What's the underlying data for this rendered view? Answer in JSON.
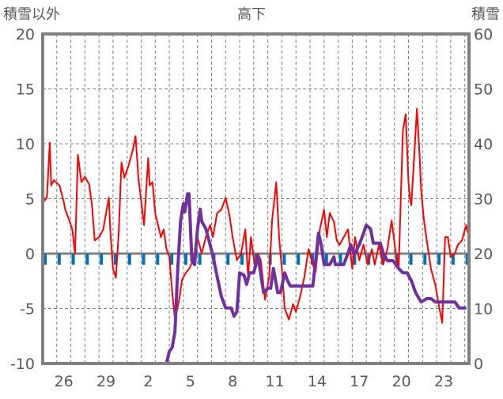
{
  "chart_data": {
    "type": "line",
    "title": "高下",
    "ylabel_left": "積雪以外",
    "ylabel_right": "積雪",
    "ylim_left": [
      -10,
      20
    ],
    "ylim_right": [
      0,
      60
    ],
    "yticks_left": [
      "20",
      "15",
      "10",
      "5",
      "0",
      "-5",
      "-10"
    ],
    "yticks_right": [
      "60",
      "50",
      "40",
      "30",
      "20",
      "10",
      "0"
    ],
    "x_unit": "days since start of day 25",
    "xlim": [
      0,
      30.3
    ],
    "x_tick_labels": [
      {
        "day": 1,
        "label": "26"
      },
      {
        "day": 4,
        "label": "29"
      },
      {
        "day": 7,
        "label": "2"
      },
      {
        "day": 10,
        "label": "5"
      },
      {
        "day": 13,
        "label": "8"
      },
      {
        "day": 16,
        "label": "11"
      },
      {
        "day": 19,
        "label": "14"
      },
      {
        "day": 22,
        "label": "17"
      },
      {
        "day": 25,
        "label": "20"
      },
      {
        "day": 28,
        "label": "23"
      }
    ],
    "grid": true,
    "series": [
      {
        "name": "積雪以外",
        "axis": "left",
        "color": "#ff0000",
        "points": [
          [
            0,
            6.2
          ],
          [
            0.1,
            4.8
          ],
          [
            0.3,
            5.1
          ],
          [
            0.5,
            10.1
          ],
          [
            0.6,
            6.2
          ],
          [
            0.8,
            6.7
          ],
          [
            1.2,
            6.2
          ],
          [
            1.5,
            4.7
          ],
          [
            1.6,
            4.0
          ],
          [
            1.9,
            3.0
          ],
          [
            2.1,
            2.2
          ],
          [
            2.3,
            0
          ],
          [
            2.5,
            9.0
          ],
          [
            2.75,
            6.5
          ],
          [
            3.0,
            7.0
          ],
          [
            3.3,
            6.3
          ],
          [
            3.5,
            4.4
          ],
          [
            3.7,
            1.2
          ],
          [
            4.0,
            1.5
          ],
          [
            4.3,
            2.2
          ],
          [
            4.7,
            5.1
          ],
          [
            4.8,
            2.2
          ],
          [
            5.0,
            -1.4
          ],
          [
            5.2,
            -2.2
          ],
          [
            5.4,
            1.9
          ],
          [
            5.6,
            8.3
          ],
          [
            5.8,
            6.9
          ],
          [
            6.1,
            8.0
          ],
          [
            6.4,
            9.4
          ],
          [
            6.6,
            10.7
          ],
          [
            6.8,
            6.9
          ],
          [
            7.1,
            3.7
          ],
          [
            7.2,
            2.6
          ],
          [
            7.5,
            8.7
          ],
          [
            7.6,
            6.2
          ],
          [
            7.8,
            6.5
          ],
          [
            8.0,
            3.7
          ],
          [
            8.2,
            2.6
          ],
          [
            8.4,
            1.5
          ],
          [
            8.6,
            2.2
          ],
          [
            8.8,
            0.4
          ],
          [
            9.0,
            -0.3
          ],
          [
            9.2,
            -3.5
          ],
          [
            9.4,
            -6
          ],
          [
            9.7,
            -4.2
          ],
          [
            9.9,
            -2.4
          ],
          [
            10.2,
            -1.7
          ],
          [
            10.4,
            -1.4
          ],
          [
            10.7,
            -0.6
          ],
          [
            11.0,
            1.5
          ],
          [
            11.3,
            0
          ],
          [
            11.6,
            1.5
          ],
          [
            11.9,
            2.6
          ],
          [
            12.1,
            1.5
          ],
          [
            12.4,
            3.7
          ],
          [
            12.7,
            4.0
          ],
          [
            13.0,
            5.1
          ],
          [
            13.3,
            3.3
          ],
          [
            13.5,
            1.5
          ],
          [
            13.8,
            -0.6
          ],
          [
            14.1,
            0
          ],
          [
            14.4,
            2.2
          ],
          [
            14.6,
            -2.1
          ],
          [
            14.8,
            1.5
          ],
          [
            15.1,
            -1.4
          ],
          [
            15.3,
            0
          ],
          [
            15.5,
            -0.6
          ],
          [
            15.8,
            -4.2
          ],
          [
            16.1,
            -2.1
          ],
          [
            16.3,
            3.0
          ],
          [
            16.6,
            6.5
          ],
          [
            16.8,
            1.5
          ],
          [
            17.0,
            -1.4
          ],
          [
            17.2,
            -5.0
          ],
          [
            17.5,
            -6.0
          ],
          [
            17.8,
            -4.6
          ],
          [
            18.0,
            -5.3
          ],
          [
            18.3,
            -3.9
          ],
          [
            18.6,
            -2.1
          ],
          [
            18.9,
            0.4
          ],
          [
            19.2,
            -1.0
          ],
          [
            19.4,
            -1.7
          ],
          [
            19.7,
            2.2
          ],
          [
            20.0,
            4.0
          ],
          [
            20.2,
            1.5
          ],
          [
            20.4,
            3.7
          ],
          [
            20.7,
            2.9
          ],
          [
            20.9,
            1.2
          ],
          [
            21.1,
            0.8
          ],
          [
            21.4,
            1.5
          ],
          [
            21.7,
            2.2
          ],
          [
            22.0,
            -1.4
          ],
          [
            22.2,
            1.5
          ],
          [
            22.5,
            -0.6
          ],
          [
            22.8,
            0.8
          ],
          [
            23.1,
            -1.0
          ],
          [
            23.4,
            0.4
          ],
          [
            23.6,
            -1.0
          ],
          [
            23.9,
            0.8
          ],
          [
            24.2,
            -1.0
          ],
          [
            24.5,
            0.4
          ],
          [
            24.8,
            3.0
          ],
          [
            25.1,
            0
          ],
          [
            25.3,
            -1.4
          ],
          [
            25.6,
            11.2
          ],
          [
            25.8,
            12.7
          ],
          [
            26.0,
            6.5
          ],
          [
            26.1,
            5.1
          ],
          [
            26.2,
            4.4
          ],
          [
            26.4,
            8.7
          ],
          [
            26.6,
            13.2
          ],
          [
            26.8,
            8.7
          ],
          [
            26.9,
            5.8
          ],
          [
            27.1,
            3.0
          ],
          [
            27.3,
            1.2
          ],
          [
            27.6,
            -1.4
          ],
          [
            27.9,
            -2.8
          ],
          [
            28.2,
            -5.0
          ],
          [
            28.4,
            -6.3
          ],
          [
            28.6,
            1.5
          ],
          [
            28.8,
            1.5
          ],
          [
            29.0,
            -0.3
          ],
          [
            29.3,
            0
          ],
          [
            29.5,
            0.8
          ],
          [
            29.8,
            1.2
          ],
          [
            30.1,
            2.6
          ],
          [
            30.2,
            1.9
          ]
        ]
      },
      {
        "name": "積雪",
        "axis": "right",
        "color": "#7030a0",
        "points": [
          [
            0,
            0
          ],
          [
            8.8,
            0
          ],
          [
            9.0,
            2.2
          ],
          [
            9.2,
            2.9
          ],
          [
            9.4,
            5.8
          ],
          [
            9.6,
            17.3
          ],
          [
            9.8,
            25.9
          ],
          [
            10.0,
            29.1
          ],
          [
            10.1,
            27.6
          ],
          [
            10.3,
            30.9
          ],
          [
            10.4,
            30.9
          ],
          [
            10.6,
            18.7
          ],
          [
            10.8,
            18.0
          ],
          [
            11.0,
            24.5
          ],
          [
            11.2,
            28.1
          ],
          [
            11.3,
            25.9
          ],
          [
            11.6,
            24.5
          ],
          [
            11.9,
            21.6
          ],
          [
            12.1,
            19.6
          ],
          [
            12.4,
            15.8
          ],
          [
            12.7,
            12.2
          ],
          [
            13.0,
            10.1
          ],
          [
            13.4,
            10.1
          ],
          [
            13.6,
            8.6
          ],
          [
            13.8,
            9.4
          ],
          [
            14.0,
            16.5
          ],
          [
            14.3,
            16.1
          ],
          [
            14.5,
            14.4
          ],
          [
            14.7,
            16.5
          ],
          [
            15.0,
            16.5
          ],
          [
            15.3,
            19.4
          ],
          [
            15.4,
            18.0
          ],
          [
            15.7,
            12.9
          ],
          [
            16.0,
            13.7
          ],
          [
            16.2,
            13.7
          ],
          [
            16.4,
            17.3
          ],
          [
            16.6,
            14.4
          ],
          [
            16.7,
            12.9
          ],
          [
            16.9,
            12.9
          ],
          [
            17.2,
            16.5
          ],
          [
            17.4,
            15.1
          ],
          [
            17.6,
            14.1
          ],
          [
            19.2,
            14.1
          ],
          [
            19.4,
            18.7
          ],
          [
            19.6,
            23.7
          ],
          [
            19.8,
            21.6
          ],
          [
            20.0,
            18.0
          ],
          [
            20.4,
            18.0
          ],
          [
            20.7,
            19.4
          ],
          [
            20.8,
            18.0
          ],
          [
            21.4,
            18.0
          ],
          [
            21.7,
            20.1
          ],
          [
            21.9,
            21.6
          ],
          [
            22.1,
            20.1
          ],
          [
            22.2,
            20.1
          ],
          [
            22.5,
            21.6
          ],
          [
            22.8,
            23.7
          ],
          [
            23.0,
            25.2
          ],
          [
            23.3,
            24.5
          ],
          [
            23.5,
            21.9
          ],
          [
            24.0,
            21.9
          ],
          [
            24.2,
            20.1
          ],
          [
            24.5,
            18.7
          ],
          [
            24.9,
            18.7
          ],
          [
            25.3,
            17.3
          ],
          [
            25.6,
            16.5
          ],
          [
            25.9,
            16.5
          ],
          [
            26.2,
            15.1
          ],
          [
            26.5,
            12.9
          ],
          [
            26.9,
            11.2
          ],
          [
            27.3,
            11.8
          ],
          [
            27.6,
            11.8
          ],
          [
            27.9,
            11.2
          ],
          [
            29.3,
            11.2
          ],
          [
            29.6,
            10.1
          ],
          [
            30.1,
            10.1
          ]
        ]
      }
    ],
    "daily_markers_color": "#0070c0"
  }
}
